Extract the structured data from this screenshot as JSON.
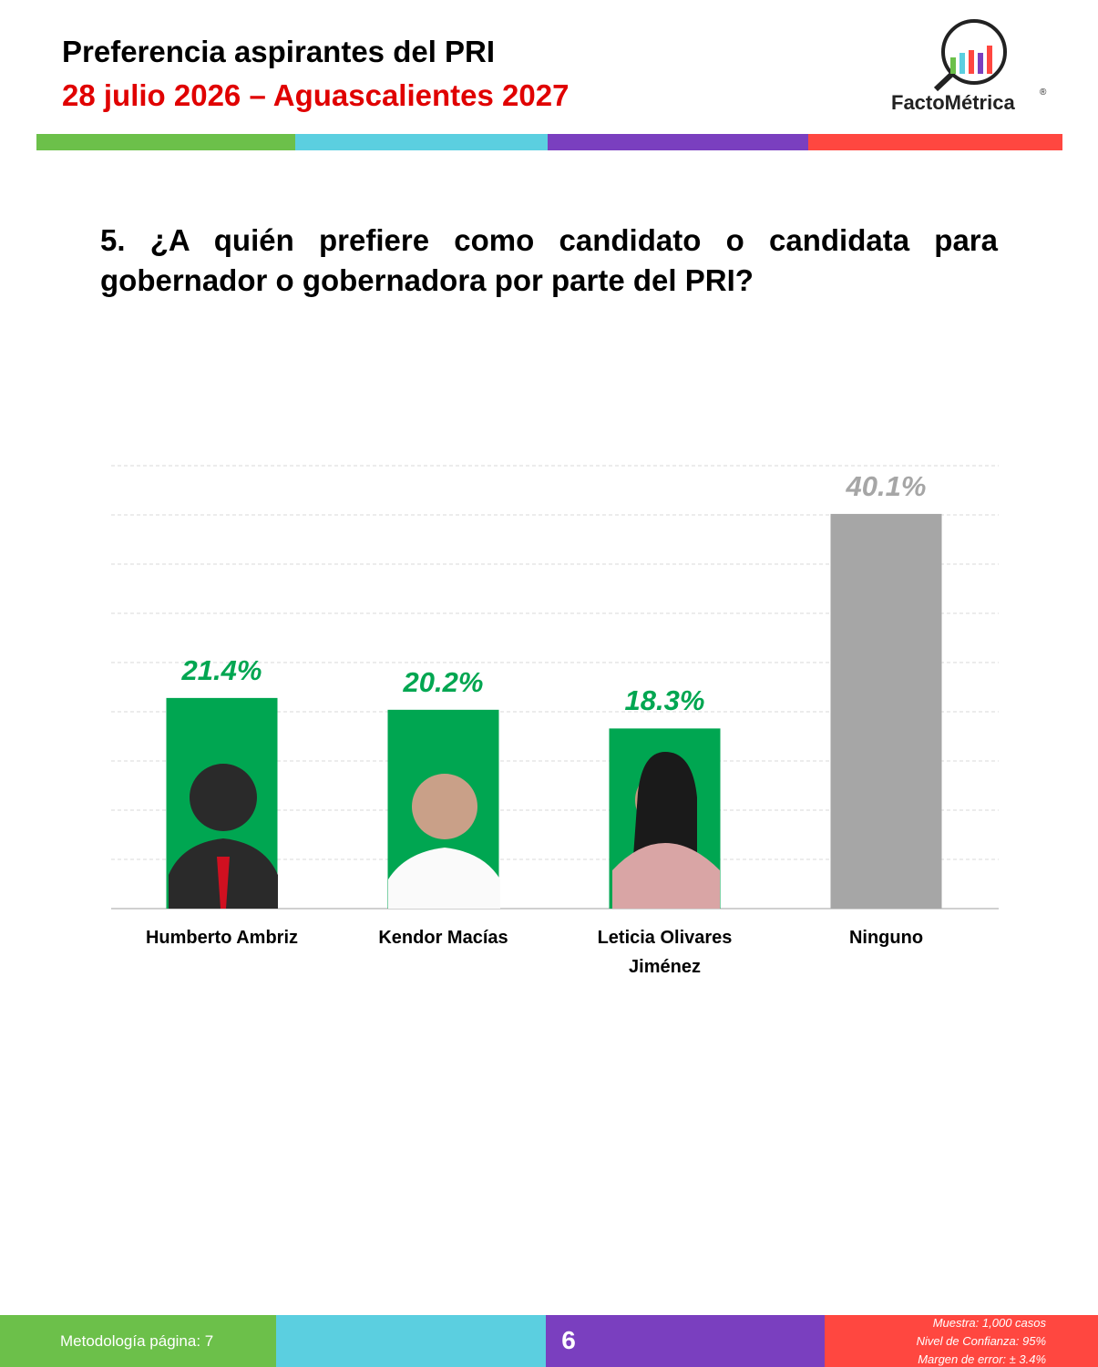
{
  "header": {
    "title": "Preferencia aspirantes del PRI",
    "subtitle": "28 julio 2026 – Aguascalientes 2027"
  },
  "logo": {
    "name": "FactoMétrica",
    "mark": "®"
  },
  "question": "5. ¿A quién prefiere como candidato o candidata para gobernador o gobernadora por parte del PRI?",
  "chart_data": {
    "type": "bar",
    "categories": [
      "Humberto Ambriz",
      "Kendor Macías",
      "Leticia Olivares Jiménez",
      "Ninguno"
    ],
    "values": [
      21.4,
      20.2,
      18.3,
      40.1
    ],
    "value_labels": [
      "21.4%",
      "20.2%",
      "18.3%",
      "40.1%"
    ],
    "colors": [
      "#00a651",
      "#00a651",
      "#00a651",
      "#a6a6a6"
    ],
    "ylim": [
      0,
      45
    ],
    "yticks": [
      0,
      5,
      10,
      15,
      20,
      25,
      30,
      35,
      40,
      45
    ],
    "grid": true
  },
  "footer": {
    "methodology": "Metodología página: 7",
    "page": "6",
    "notes": [
      "Muestra:  1,000 casos",
      "Nivel de Confianza: 95%",
      "Margen de error: ± 3.4%"
    ]
  }
}
